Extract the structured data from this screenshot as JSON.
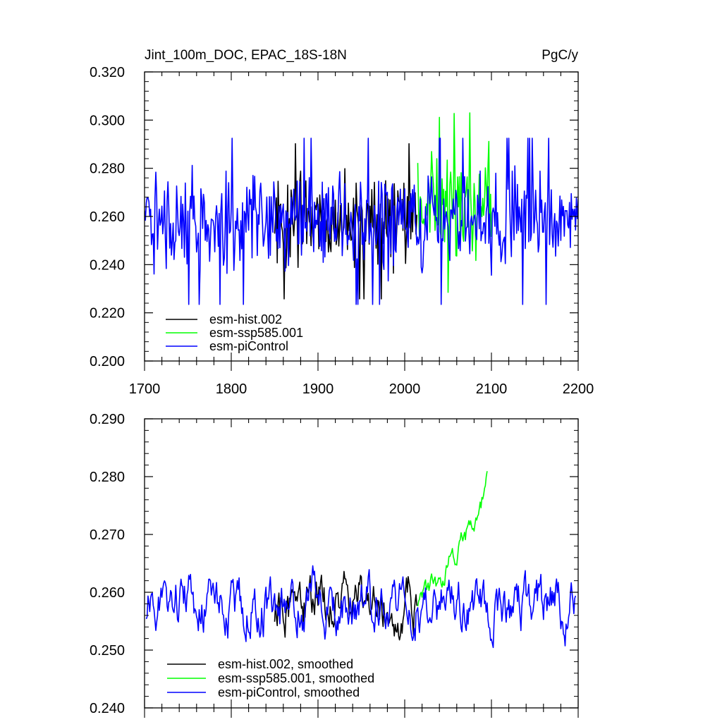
{
  "chart_data": [
    {
      "type": "line",
      "title_left": "Jint_100m_DOC, EPAC_18S-18N",
      "title_right": "PgC/y",
      "xlim": [
        1700,
        2200
      ],
      "ylim": [
        0.2,
        0.32
      ],
      "x_ticks": [
        "1700",
        "1800",
        "1900",
        "2000",
        "2100",
        "2200"
      ],
      "y_ticks": [
        "0.200",
        "0.220",
        "0.240",
        "0.260",
        "0.280",
        "0.300",
        "0.320"
      ],
      "legend_position": "bottom-left",
      "series": [
        {
          "name": "esm-hist.002",
          "color": "#000000",
          "x_range": [
            1850,
            2014
          ],
          "mean": 0.258,
          "amplitude": 0.014,
          "min": 0.221,
          "max": 0.301
        },
        {
          "name": "esm-ssp585.001",
          "color": "#00ff00",
          "x_range": [
            2015,
            2100
          ],
          "mean": 0.262,
          "amplitude": 0.016,
          "trend_end": 0.27,
          "min": 0.224,
          "max": 0.303
        },
        {
          "name": "esm-piControl",
          "color": "#0000ff",
          "x_range": [
            1700,
            2200
          ],
          "mean": 0.258,
          "amplitude": 0.015,
          "min": 0.219,
          "max": 0.3
        }
      ]
    },
    {
      "type": "line",
      "xlim": [
        1700,
        2200
      ],
      "ylim": [
        0.24,
        0.29
      ],
      "y_ticks": [
        "0.240",
        "0.250",
        "0.260",
        "0.270",
        "0.280",
        "0.290"
      ],
      "legend_position": "bottom-left",
      "series": [
        {
          "name": "esm-hist.002, smoothed",
          "color": "#000000",
          "x_range": [
            1850,
            2014
          ],
          "mean": 0.258,
          "amplitude": 0.004,
          "min": 0.249,
          "max": 0.268
        },
        {
          "name": "esm-ssp585.001, smoothed",
          "color": "#00ff00",
          "x_range": [
            2015,
            2095
          ],
          "start": 0.259,
          "end": 0.279,
          "amplitude": 0.002,
          "max": 0.281
        },
        {
          "name": "esm-piControl, smoothed",
          "color": "#0000ff",
          "x_range": [
            1702,
            2197
          ],
          "mean": 0.258,
          "amplitude": 0.004,
          "min": 0.247,
          "max": 0.268
        }
      ]
    }
  ]
}
